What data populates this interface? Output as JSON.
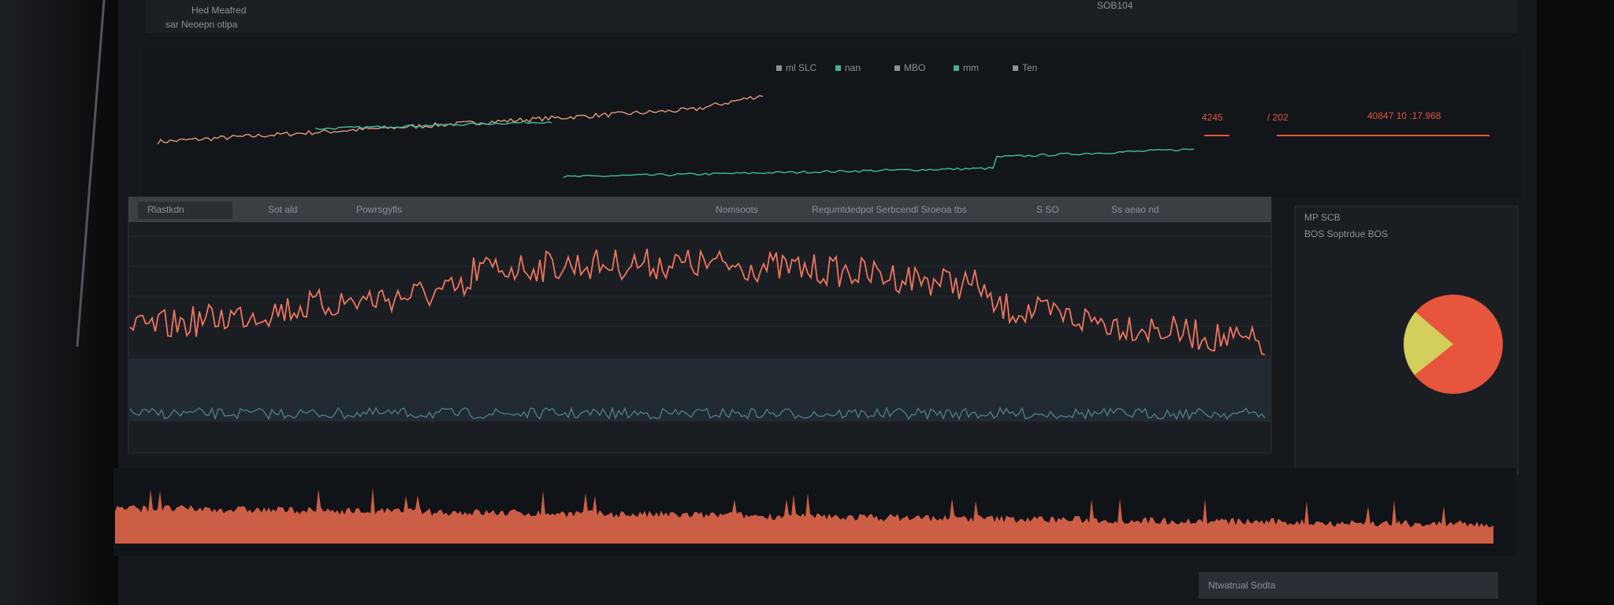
{
  "header": {
    "title": "Hed Meafred",
    "subtitle": "sar Neoepn otipa",
    "status": "SOB104"
  },
  "top_panel": {
    "legend": [
      "ml SLC",
      "nan",
      "MBO",
      "mm",
      "Ten"
    ],
    "big_left": "4245",
    "big_mid": "/ 202",
    "big_right": "40847 10 :17.968"
  },
  "main_panel": {
    "tab": "Rlastkdn",
    "tab2": "Sot ald",
    "label": "Powrsgyfls",
    "center": "Nomsoots",
    "title": "Requmtdedpol Serbcendl Sroeoa tbs",
    "ctrl": "S SO",
    "ctrl2": "Ss aeao nd"
  },
  "side_panel": {
    "title": "MP SCB",
    "subtitle": "BOS Soptrdue BOS"
  },
  "footer": {
    "button": "Ntwatrual Sodta"
  }
}
